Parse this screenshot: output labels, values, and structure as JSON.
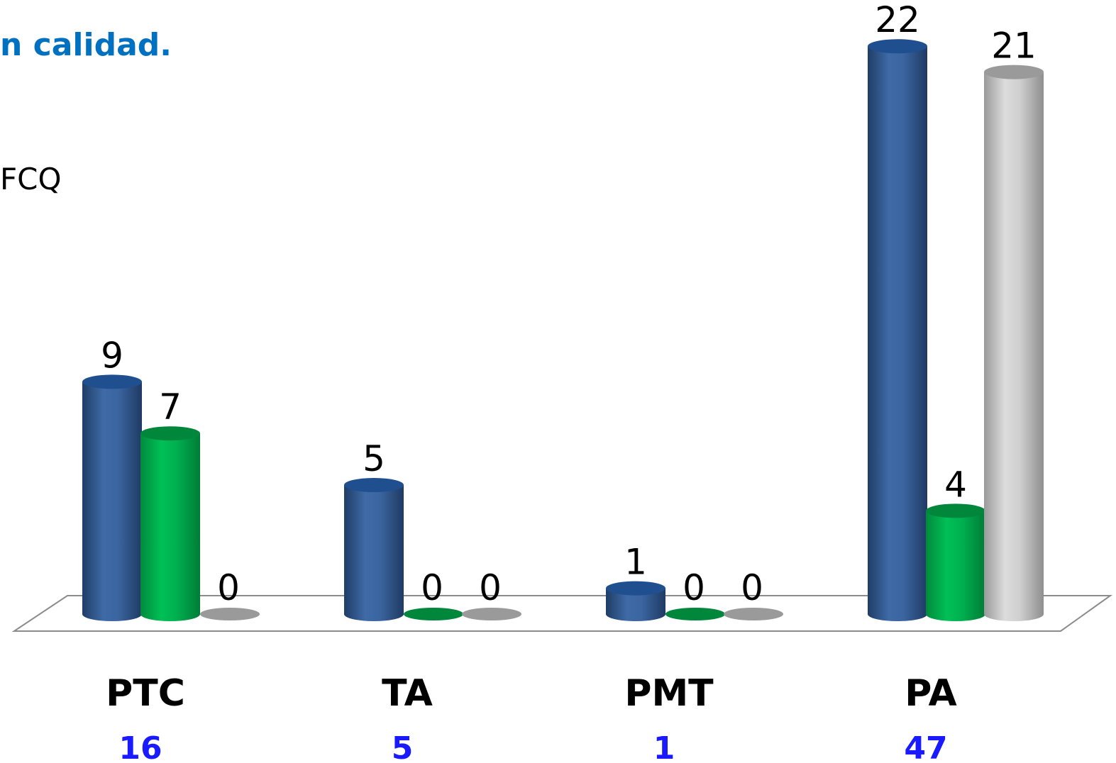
{
  "title_fragment": "n calidad.",
  "legend_fragment": "FCQ",
  "colors": {
    "series_blue": "#3b65a0",
    "series_green": "#00b050",
    "series_gray": "#c8c8c8",
    "total_text": "#1a1aff",
    "title_text": "#0070c0"
  },
  "chart_data": {
    "type": "bar",
    "style": "3d-cylinder",
    "categories": [
      "PTC",
      "TA",
      "PMT",
      "PA"
    ],
    "category_totals": [
      "16",
      "5",
      "1",
      "47"
    ],
    "series": [
      {
        "color": "#3b65a0",
        "values": [
          9,
          5,
          1,
          22
        ]
      },
      {
        "color": "#00b050",
        "values": [
          7,
          0,
          0,
          4
        ]
      },
      {
        "color": "#c8c8c8",
        "values": [
          0,
          0,
          0,
          21
        ]
      }
    ],
    "ylim": [
      0,
      22
    ],
    "grid": false,
    "data_labels": true
  }
}
